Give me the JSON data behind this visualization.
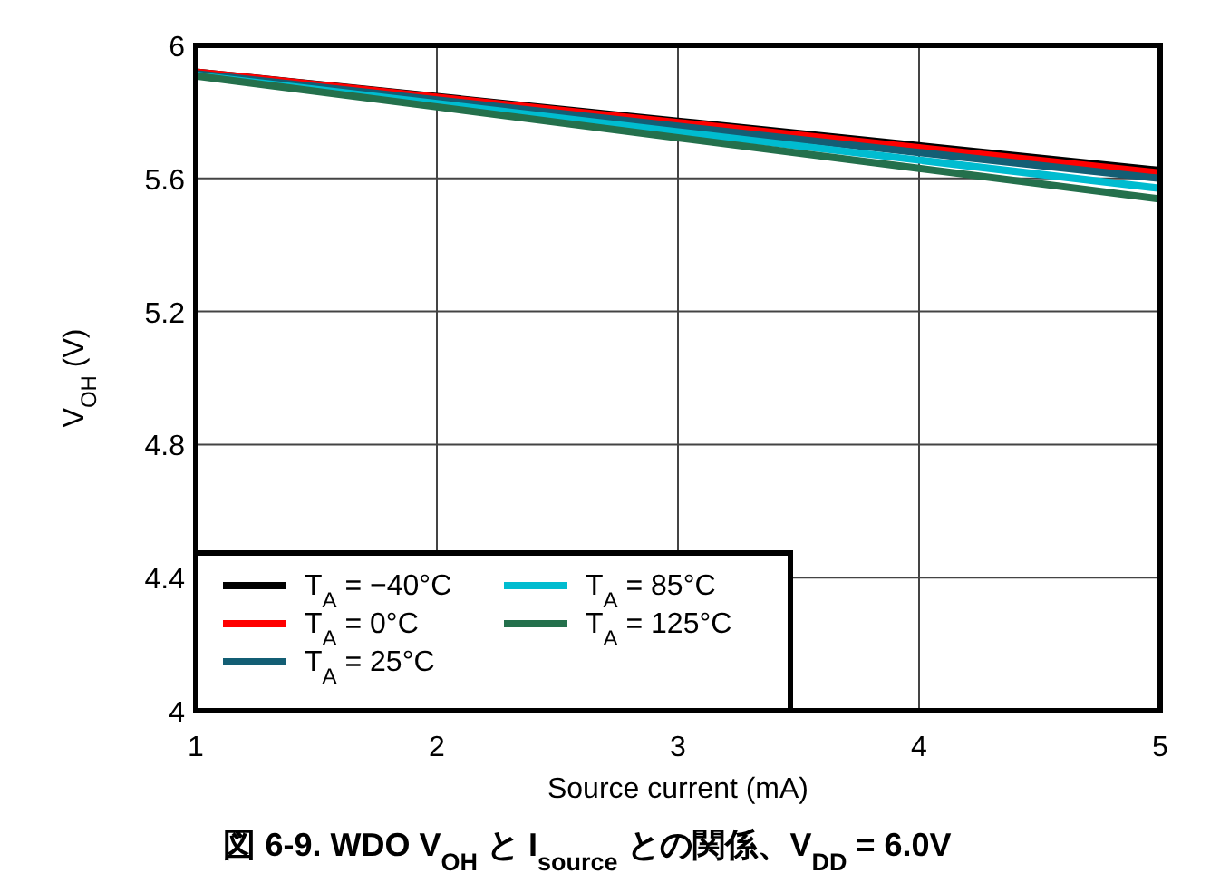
{
  "chart_data": {
    "type": "line",
    "title": "図 6-9. WDO V$_{OH}$ と I$_{source}$ との関係、V$_{DD}$ = 6.0V",
    "xlabel": "Source current (mA)",
    "ylabel": "V$_{OH}$ (V)",
    "x": [
      1,
      2,
      3,
      4,
      5
    ],
    "series": [
      {
        "name": "T$_{A}$ = −40°C",
        "color": "#000000",
        "values": [
          5.92,
          5.846,
          5.772,
          5.698,
          5.624
        ]
      },
      {
        "name": "T$_{A}$ = 0°C",
        "color": "#ff0000",
        "values": [
          5.92,
          5.844,
          5.768,
          5.692,
          5.616
        ]
      },
      {
        "name": "T$_{A}$ = 25°C",
        "color": "#135e74",
        "values": [
          5.915,
          5.836,
          5.757,
          5.678,
          5.6
        ]
      },
      {
        "name": "T$_{A}$ = 85°C",
        "color": "#00bcd0",
        "values": [
          5.91,
          5.825,
          5.74,
          5.655,
          5.57
        ]
      },
      {
        "name": "T$_{A}$ = 125°C",
        "color": "#24704c",
        "values": [
          5.908,
          5.815,
          5.722,
          5.63,
          5.538
        ]
      }
    ],
    "xlim": [
      1,
      5
    ],
    "ylim": [
      4,
      6
    ],
    "xticks": [
      1,
      2,
      3,
      4,
      5
    ],
    "yticks": [
      4,
      4.4,
      4.8,
      5.2,
      5.6,
      6
    ],
    "grid": true,
    "legend": "bottom left",
    "marker": "none",
    "line_style": "solid"
  }
}
